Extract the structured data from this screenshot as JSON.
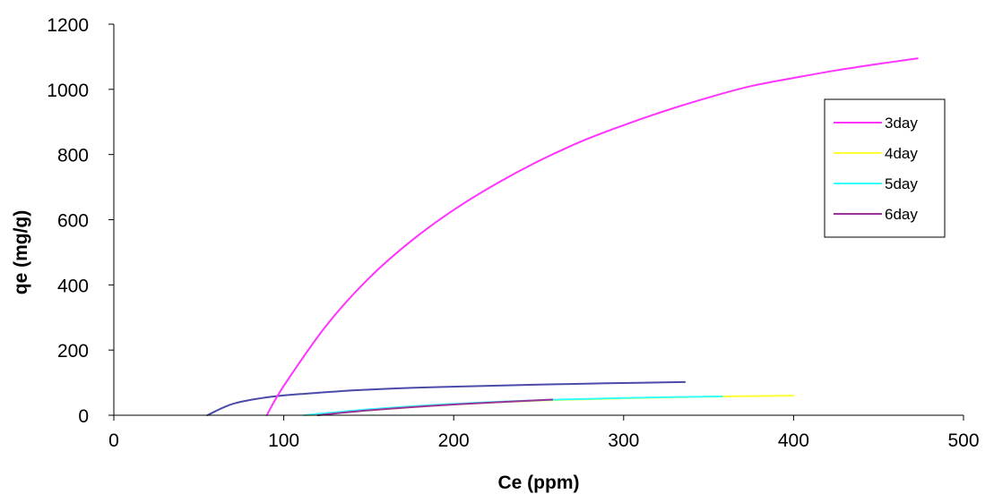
{
  "chart_data": {
    "type": "line",
    "title": "",
    "xlabel": "Ce (ppm)",
    "ylabel": "qe (mg/g)",
    "xlim": [
      0,
      500
    ],
    "ylim": [
      0,
      1200
    ],
    "xticks": [
      0,
      100,
      200,
      300,
      400,
      500
    ],
    "yticks": [
      0,
      200,
      400,
      600,
      800,
      1000,
      1200
    ],
    "grid": false,
    "legend": {
      "position": "top-right"
    },
    "series": [
      {
        "name": "3day",
        "color": "#ff33ff",
        "x": [
          90,
          100,
          125,
          150,
          175,
          200,
          225,
          250,
          275,
          300,
          325,
          350,
          375,
          400,
          425,
          450,
          473
        ],
        "y": [
          0,
          90,
          275,
          420,
          535,
          630,
          710,
          780,
          840,
          890,
          935,
          975,
          1010,
          1035,
          1058,
          1078,
          1095
        ]
      },
      {
        "name": "4day",
        "color": "#ffff33",
        "x": [
          115,
          150,
          200,
          250,
          300,
          350,
          400
        ],
        "y": [
          0,
          15,
          33,
          45,
          52,
          57,
          60
        ]
      },
      {
        "name": "5day",
        "color": "#33ffff",
        "x": [
          112,
          150,
          200,
          250,
          300,
          358
        ],
        "y": [
          0,
          18,
          35,
          46,
          53,
          58
        ]
      },
      {
        "name": "6day",
        "color": "#993399",
        "x": [
          120,
          150,
          200,
          258
        ],
        "y": [
          0,
          15,
          33,
          48
        ]
      },
      {
        "name": "",
        "color": "#4a4aa8",
        "x": [
          55,
          70,
          90,
          110,
          140,
          175,
          210,
          250,
          290,
          336
        ],
        "y": [
          0,
          35,
          55,
          65,
          76,
          84,
          89,
          94,
          98,
          102
        ]
      }
    ]
  }
}
